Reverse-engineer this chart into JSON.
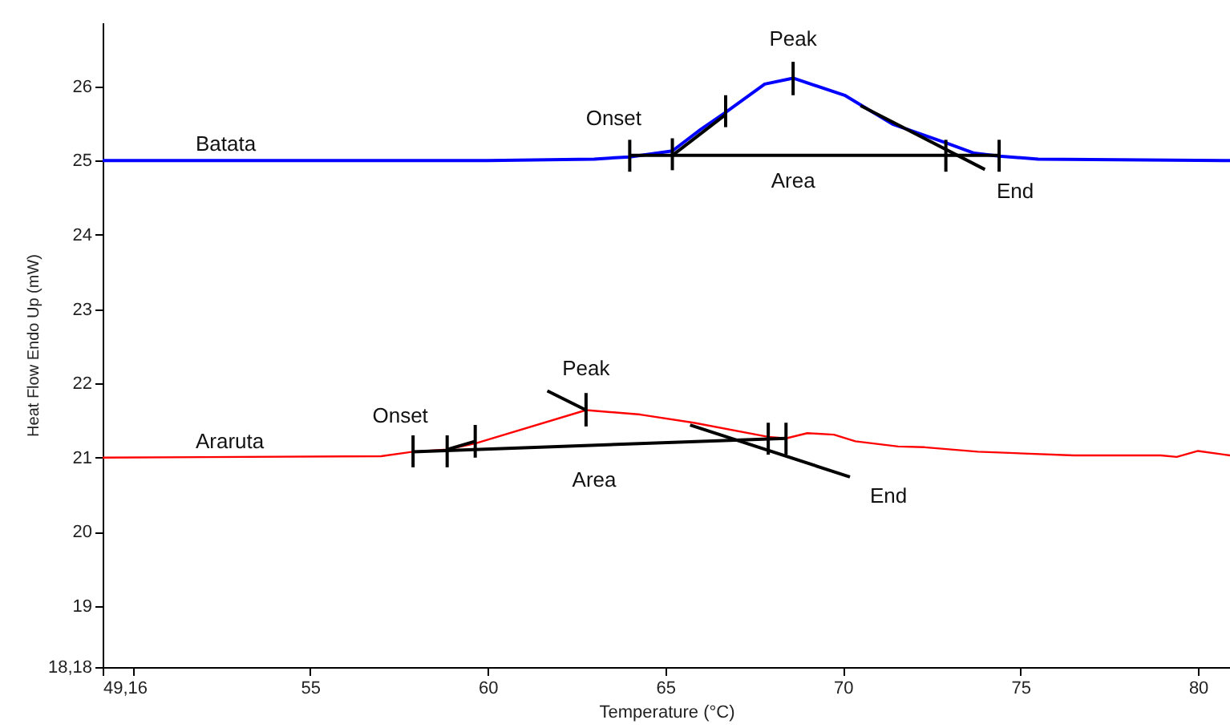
{
  "chart_data": {
    "type": "line",
    "xlabel": "Temperature (°C)",
    "ylabel": "Heat Flow Endo Up (mW)",
    "xlim": [
      49.16,
      80.9
    ],
    "ylim": [
      18.18,
      26.86
    ],
    "xticks": [
      {
        "value": 49.16,
        "label": "49,16"
      },
      {
        "value": 50,
        "label": null
      },
      55,
      60,
      65,
      70,
      75,
      80
    ],
    "yticks": [
      {
        "value": 18.18,
        "label": "18,18"
      },
      19,
      20,
      21,
      22,
      23,
      24,
      25,
      26
    ],
    "grid": false,
    "marker": "none",
    "line_style": "solid",
    "series": [
      {
        "name": "Batata",
        "color": "#0000ff",
        "x": [
          49.16,
          60.0,
          63.0,
          64.0,
          65.2,
          66.0,
          66.7,
          67.8,
          68.6,
          70.05,
          71.4,
          72.9,
          73.7,
          74.4,
          75.5,
          80.9
        ],
        "values": [
          25.0,
          25.0,
          25.02,
          25.05,
          25.13,
          25.42,
          25.65,
          26.03,
          26.11,
          25.88,
          25.49,
          25.24,
          25.1,
          25.06,
          25.02,
          25.0
        ]
      },
      {
        "name": "Araruta",
        "color": "#ff0000",
        "x": [
          49.16,
          57.0,
          57.9,
          58.86,
          59.65,
          62.77,
          64.3,
          65.8,
          67.9,
          68.4,
          69.0,
          69.75,
          70.35,
          71.56,
          72.3,
          73.8,
          76.5,
          78.95,
          79.4,
          80.0,
          80.9
        ],
        "values": [
          21.0,
          21.02,
          21.08,
          21.11,
          21.19,
          21.64,
          21.58,
          21.47,
          21.28,
          21.26,
          21.33,
          21.31,
          21.22,
          21.15,
          21.14,
          21.08,
          21.03,
          21.03,
          21.01,
          21.09,
          21.03
        ]
      },
      {
        "color": "#000000",
        "x": [
          64.0,
          74.4
        ],
        "values": [
          25.07,
          25.07
        ]
      },
      {
        "color": "#000000",
        "x": [
          65.2,
          66.7
        ],
        "values": [
          25.07,
          25.62
        ]
      },
      {
        "color": "#000000",
        "x": [
          70.5,
          74.0
        ],
        "values": [
          25.74,
          24.88
        ]
      },
      {
        "color": "#000000",
        "x": [
          64.0,
          64.0
        ],
        "values": [
          24.85,
          25.28
        ]
      },
      {
        "color": "#000000",
        "x": [
          65.2,
          65.2
        ],
        "values": [
          24.87,
          25.3
        ]
      },
      {
        "color": "#000000",
        "x": [
          66.7,
          66.7
        ],
        "values": [
          25.45,
          25.88
        ]
      },
      {
        "color": "#000000",
        "x": [
          68.6,
          68.6
        ],
        "values": [
          25.88,
          26.33
        ]
      },
      {
        "color": "#000000",
        "x": [
          72.9,
          72.9
        ],
        "values": [
          24.85,
          25.28
        ]
      },
      {
        "color": "#000000",
        "x": [
          74.4,
          74.4
        ],
        "values": [
          24.85,
          25.28
        ]
      },
      {
        "color": "#000000",
        "x": [
          57.9,
          68.4
        ],
        "values": [
          21.08,
          21.26
        ]
      },
      {
        "color": "#000000",
        "x": [
          58.86,
          59.65
        ],
        "values": [
          21.11,
          21.22
        ]
      },
      {
        "color": "#000000",
        "x": [
          61.68,
          62.77
        ],
        "values": [
          21.9,
          21.64
        ]
      },
      {
        "color": "#000000",
        "x": [
          65.7,
          70.2
        ],
        "values": [
          21.44,
          20.74
        ]
      },
      {
        "color": "#000000",
        "x": [
          57.9,
          57.9
        ],
        "values": [
          20.87,
          21.3
        ]
      },
      {
        "color": "#000000",
        "x": [
          58.86,
          58.86
        ],
        "values": [
          20.87,
          21.3
        ]
      },
      {
        "color": "#000000",
        "x": [
          59.65,
          59.65
        ],
        "values": [
          21.0,
          21.44
        ]
      },
      {
        "color": "#000000",
        "x": [
          62.77,
          62.77
        ],
        "values": [
          21.42,
          21.87
        ]
      },
      {
        "color": "#000000",
        "x": [
          67.9,
          67.9
        ],
        "values": [
          21.04,
          21.47
        ]
      },
      {
        "color": "#000000",
        "x": [
          68.4,
          68.4
        ],
        "values": [
          21.04,
          21.47
        ]
      }
    ],
    "annotations": [
      {
        "text": "Peak",
        "x": 68.6,
        "y": 26.11
      },
      {
        "text": "Onset",
        "x": 64.0,
        "y": 25.05
      },
      {
        "text": "Area",
        "x": 68.6,
        "y": 25.07
      },
      {
        "text": "End",
        "x": 74.4,
        "y": 25.06
      },
      {
        "text": "Peak",
        "x": 62.77,
        "y": 21.64
      },
      {
        "text": "Onset",
        "x": 57.9,
        "y": 21.08
      },
      {
        "text": "Area",
        "x": 63.0,
        "y": 21.17
      },
      {
        "text": "End",
        "x": 70.2,
        "y": 20.74
      }
    ]
  }
}
